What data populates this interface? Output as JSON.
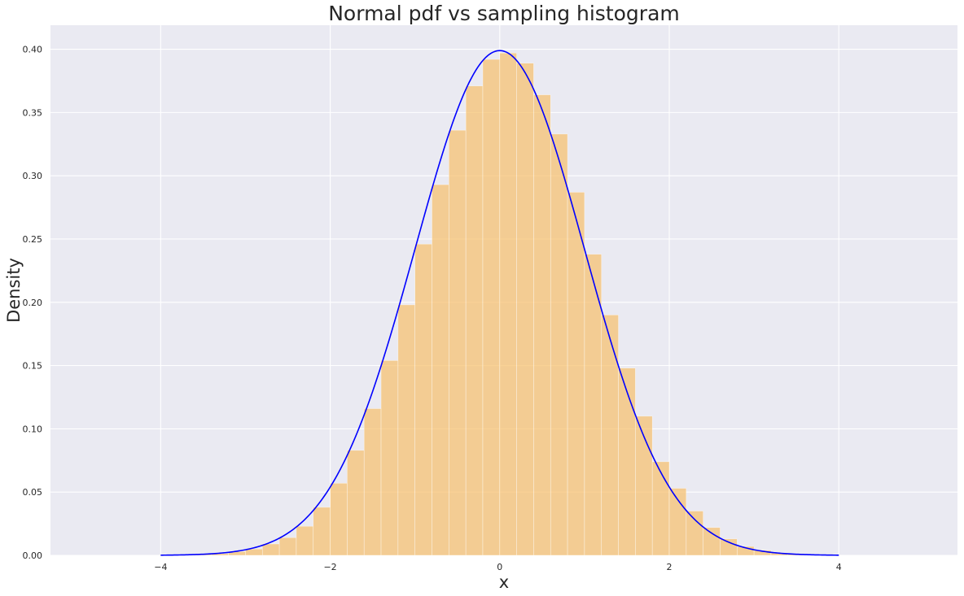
{
  "chart_data": {
    "type": "bar",
    "title": "Normal pdf vs sampling histogram",
    "xlabel": "x",
    "ylabel": "Density",
    "xlim": [
      -5.3,
      5.4
    ],
    "ylim": [
      0,
      0.419
    ],
    "xticks": [
      -4,
      -2,
      0,
      2,
      4
    ],
    "xtick_labels": [
      "−4",
      "−2",
      "0",
      "2",
      "4"
    ],
    "yticks": [
      0,
      0.05,
      0.1,
      0.15,
      0.2,
      0.25,
      0.3,
      0.35,
      0.4
    ],
    "ytick_labels": [
      "0.00",
      "0.05",
      "0.10",
      "0.15",
      "0.20",
      "0.25",
      "0.30",
      "0.35",
      "0.40"
    ],
    "grid": true,
    "legend": "none",
    "colors": {
      "background": "#eaeaf2",
      "grid": "#ffffff",
      "bars": "#f6c16e",
      "curve": "#0000ff"
    },
    "series": [
      {
        "type": "histogram",
        "bin_width": 0.2,
        "bin_edges": [
          -3.8,
          -3.6,
          -3.4,
          -3.2,
          -3.0,
          -2.8,
          -2.6,
          -2.4,
          -2.2,
          -2.0,
          -1.8,
          -1.6,
          -1.4,
          -1.2,
          -1.0,
          -0.8,
          -0.6,
          -0.4,
          -0.2,
          0.0,
          0.2,
          0.4,
          0.6,
          0.8,
          1.0,
          1.2,
          1.4,
          1.6,
          1.8,
          2.0,
          2.2,
          2.4,
          2.6,
          2.8,
          3.0,
          3.2,
          3.4,
          3.6,
          3.8
        ],
        "values": [
          0.0004,
          0.0008,
          0.0014,
          0.003,
          0.005,
          0.009,
          0.014,
          0.023,
          0.038,
          0.057,
          0.083,
          0.116,
          0.154,
          0.198,
          0.246,
          0.293,
          0.336,
          0.371,
          0.392,
          0.397,
          0.389,
          0.364,
          0.333,
          0.287,
          0.238,
          0.19,
          0.148,
          0.11,
          0.074,
          0.053,
          0.035,
          0.022,
          0.013,
          0.007,
          0.004,
          0.002,
          0.001,
          0.0005
        ]
      },
      {
        "type": "line",
        "function": "standard normal pdf",
        "x_range": [
          -4,
          4
        ],
        "mean": 0,
        "std": 1
      }
    ]
  }
}
